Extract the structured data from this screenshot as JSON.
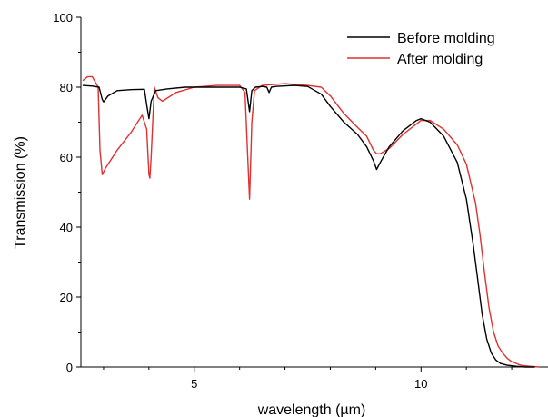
{
  "chart_data": {
    "type": "line",
    "title": "",
    "xlabel": "wavelength (µm)",
    "ylabel": "Transmission (%)",
    "xlim": [
      2.5,
      12.8
    ],
    "ylim": [
      0,
      100
    ],
    "x_ticks": [
      5,
      10
    ],
    "x_tick_labels": [
      "5",
      "10"
    ],
    "x_minor_ticks": [
      3,
      4,
      6,
      7,
      8,
      9,
      11,
      12
    ],
    "y_ticks": [
      0,
      20,
      40,
      60,
      80,
      100
    ],
    "y_tick_labels": [
      "0",
      "20",
      "40",
      "60",
      "80",
      "100"
    ],
    "grid": false,
    "legend_position": "top-right",
    "series": [
      {
        "name": "Before molding",
        "color": "#000000",
        "x": [
          2.55,
          2.75,
          2.9,
          2.97,
          3.0,
          3.1,
          3.3,
          3.6,
          3.9,
          3.95,
          4.0,
          4.05,
          4.15,
          4.4,
          4.8,
          5.2,
          5.6,
          6.0,
          6.15,
          6.22,
          6.27,
          6.35,
          6.5,
          6.6,
          6.65,
          6.7,
          6.8,
          7.2,
          7.5,
          7.8,
          8.0,
          8.3,
          8.6,
          8.8,
          8.95,
          9.02,
          9.1,
          9.3,
          9.6,
          9.9,
          10.0,
          10.2,
          10.5,
          10.8,
          11.0,
          11.15,
          11.25,
          11.35,
          11.45,
          11.55,
          11.65,
          11.75,
          11.9,
          12.1,
          12.3,
          12.5
        ],
        "y": [
          80.5,
          80.3,
          80.0,
          76.5,
          75.8,
          77.5,
          79.0,
          79.3,
          79.4,
          75.0,
          71.0,
          76.0,
          79.0,
          79.5,
          80.0,
          80.0,
          80.0,
          80.0,
          79.5,
          73.0,
          79.0,
          80.0,
          80.2,
          80.0,
          78.5,
          80.0,
          80.2,
          80.5,
          80.2,
          78.0,
          74.5,
          70.0,
          66.5,
          63.0,
          59.0,
          56.5,
          58.5,
          63.0,
          67.5,
          70.5,
          71.0,
          70.0,
          66.0,
          58.5,
          48.0,
          35.0,
          25.0,
          15.0,
          8.0,
          4.0,
          2.0,
          1.0,
          0.5,
          0.2,
          0.0,
          0.0
        ]
      },
      {
        "name": "After molding",
        "color": "#e03030",
        "x": [
          2.55,
          2.65,
          2.75,
          2.88,
          2.92,
          2.97,
          3.05,
          3.3,
          3.6,
          3.85,
          3.95,
          4.0,
          4.02,
          4.05,
          4.12,
          4.2,
          4.3,
          4.6,
          5.0,
          5.5,
          6.0,
          6.12,
          6.18,
          6.22,
          6.27,
          6.33,
          6.5,
          7.0,
          7.5,
          7.8,
          8.0,
          8.3,
          8.6,
          8.8,
          8.95,
          9.02,
          9.1,
          9.3,
          9.6,
          9.9,
          10.0,
          10.2,
          10.5,
          10.8,
          11.0,
          11.2,
          11.3,
          11.4,
          11.5,
          11.6,
          11.7,
          11.8,
          11.9,
          12.0,
          12.1,
          12.2,
          12.4,
          12.6
        ],
        "y": [
          82.0,
          83.0,
          83.0,
          80.0,
          62.0,
          55.0,
          57.0,
          62.0,
          67.0,
          72.0,
          68.0,
          55.0,
          54.0,
          60.0,
          80.0,
          77.0,
          76.0,
          78.5,
          80.0,
          80.5,
          80.5,
          78.5,
          60.0,
          48.0,
          70.0,
          79.0,
          80.5,
          81.0,
          80.5,
          80.0,
          77.5,
          72.5,
          68.5,
          66.0,
          62.0,
          61.0,
          61.0,
          62.5,
          66.5,
          69.5,
          70.5,
          70.5,
          68.0,
          63.5,
          58.0,
          47.0,
          38.0,
          27.0,
          17.0,
          10.0,
          6.0,
          4.0,
          2.5,
          1.5,
          1.0,
          0.5,
          0.2,
          0.0
        ]
      }
    ]
  }
}
